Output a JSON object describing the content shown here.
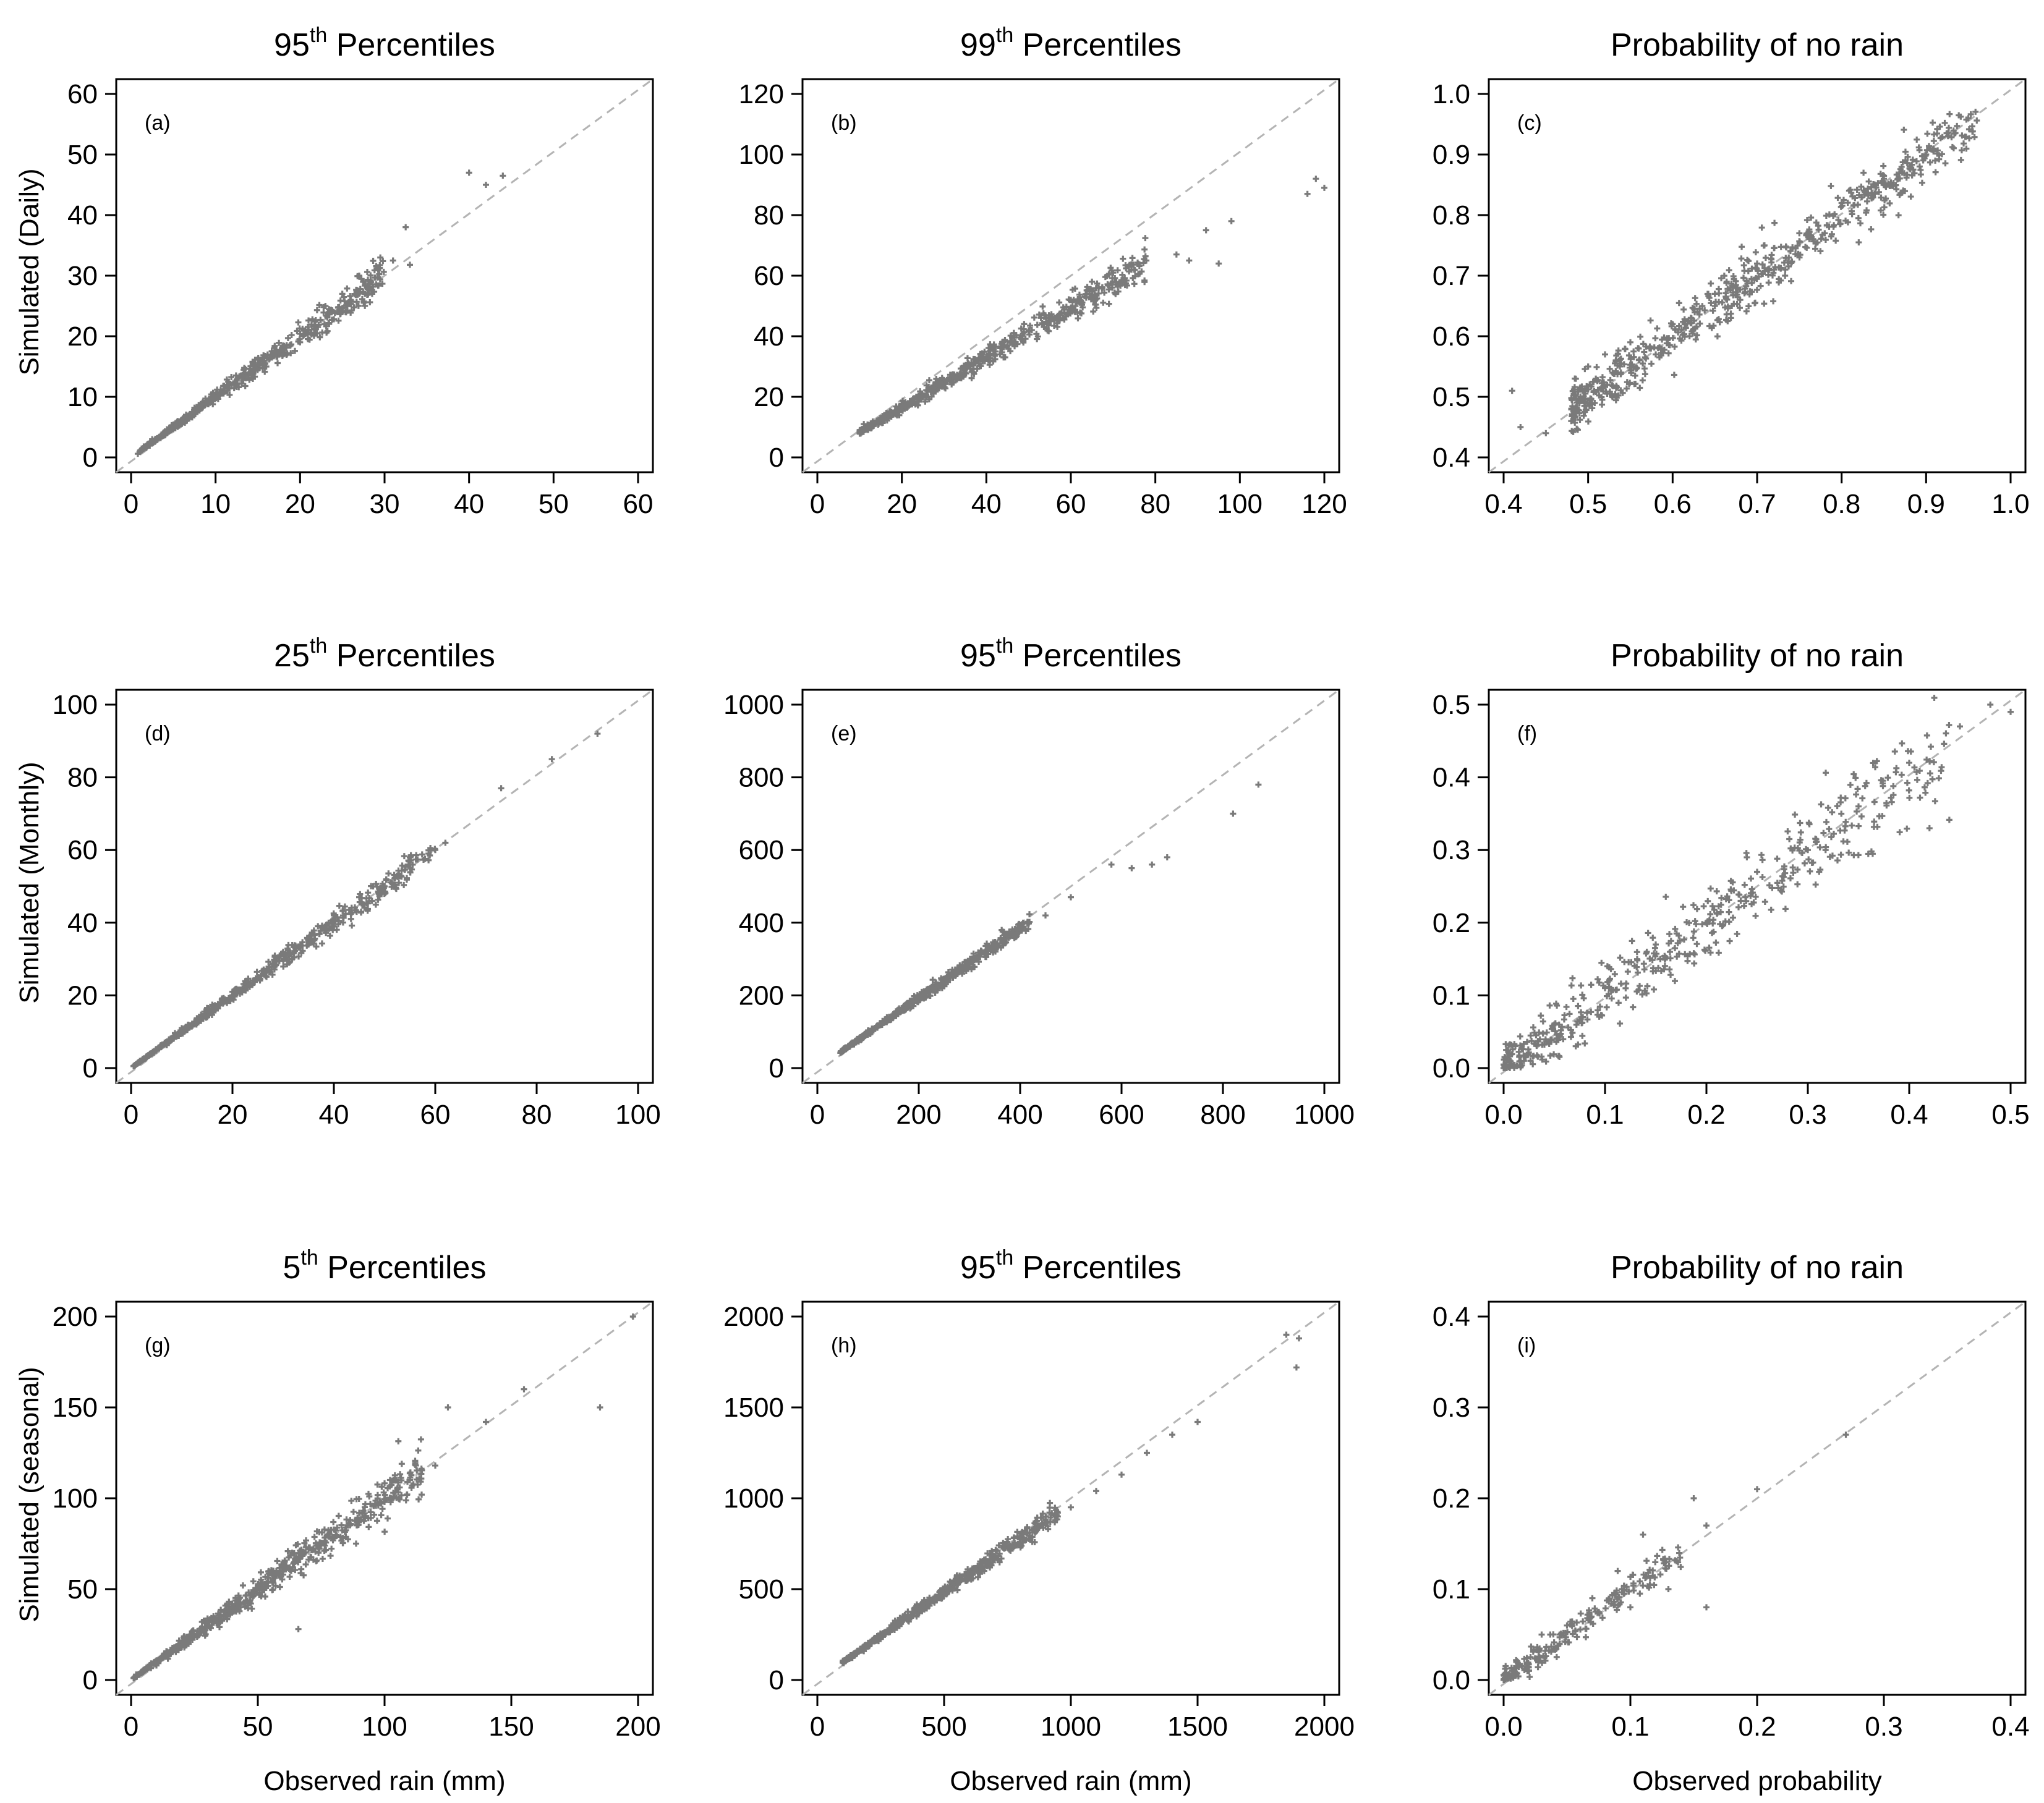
{
  "figure": {
    "x_axis_labels": [
      "Observed rain (mm)",
      "Observed rain (mm)",
      "Observed probability"
    ],
    "y_axis_labels": [
      "Simulated (Daily)",
      "Simulated (Monthly)",
      "Simulated (seasonal)"
    ],
    "colors": {
      "points": "#7a7a7a",
      "reference_line": "#b4b4b4",
      "axes": "#000000"
    }
  },
  "chart_data": [
    {
      "type": "scatter",
      "panel_label": "(a)",
      "title_prefix": "95",
      "title_sup": "th",
      "title_suffix": " Percentiles",
      "xlim": [
        0,
        60
      ],
      "ylim": [
        0,
        60
      ],
      "xticks": [
        0,
        10,
        20,
        30,
        40,
        50,
        60
      ],
      "yticks": [
        0,
        10,
        20,
        30,
        40,
        50,
        60
      ],
      "reference_line": "1:1 dashed",
      "series": [
        {
          "name": "stations",
          "points": [
            [
              0.8,
              0.6
            ],
            [
              1.5,
              1.8
            ],
            [
              2.5,
              3.0
            ],
            [
              3.5,
              3.2
            ],
            [
              4.5,
              4.8
            ],
            [
              5.5,
              6.0
            ],
            [
              6.5,
              6.0
            ],
            [
              7.5,
              8.2
            ],
            [
              8.5,
              8.8
            ],
            [
              9.5,
              10.4
            ],
            [
              10.5,
              10.2
            ],
            [
              11.5,
              12.5
            ],
            [
              12.5,
              12.8
            ],
            [
              13.5,
              14.6
            ],
            [
              14.0,
              12.8
            ],
            [
              15.0,
              16.2
            ],
            [
              16.0,
              15.0
            ],
            [
              17.0,
              18.4
            ],
            [
              18.0,
              17.0
            ],
            [
              19.0,
              20.2
            ],
            [
              20.0,
              19.0
            ],
            [
              21.0,
              22.6
            ],
            [
              22.0,
              20.5
            ],
            [
              23.0,
              25.0
            ],
            [
              24.0,
              22.8
            ],
            [
              25.0,
              27.0
            ],
            [
              26.0,
              26.0
            ],
            [
              27.0,
              30.0
            ],
            [
              28.0,
              27.8
            ],
            [
              29.5,
              33.0
            ],
            [
              31.0,
              32.5
            ],
            [
              32.5,
              38.0
            ],
            [
              33.0,
              31.8
            ],
            [
              40.0,
              47.0
            ],
            [
              42.0,
              45.0
            ],
            [
              44.0,
              46.5
            ]
          ],
          "scatter_n": 520,
          "scatter_spread": 0.09,
          "scatter_xrange": [
            1,
            30
          ]
        }
      ]
    },
    {
      "type": "scatter",
      "panel_label": "(b)",
      "title_prefix": "99",
      "title_sup": "th",
      "title_suffix": " Percentiles",
      "xlim": [
        0,
        120
      ],
      "ylim": [
        0,
        120
      ],
      "xticks": [
        0,
        20,
        40,
        60,
        80,
        100,
        120
      ],
      "yticks": [
        0,
        20,
        40,
        60,
        80,
        100,
        120
      ],
      "reference_line": "1:1 dashed",
      "series": [
        {
          "name": "stations",
          "points": [
            [
              11,
              11
            ],
            [
              15,
              13
            ],
            [
              20,
              16
            ],
            [
              25,
              20
            ],
            [
              30,
              25
            ],
            [
              35,
              29
            ],
            [
              40,
              33
            ],
            [
              45,
              37
            ],
            [
              50,
              42
            ],
            [
              55,
              45
            ],
            [
              60,
              52
            ],
            [
              65,
              58
            ],
            [
              70,
              61
            ],
            [
              75,
              62
            ],
            [
              85,
              67
            ],
            [
              88,
              65
            ],
            [
              92,
              75
            ],
            [
              95,
              64
            ],
            [
              98,
              78
            ],
            [
              116,
              87
            ],
            [
              118,
              92
            ],
            [
              120,
              89
            ]
          ],
          "scatter_n": 560,
          "scatter_spread": 0.07,
          "scatter_xrange": [
            10,
            78
          ],
          "scatter_slope": 0.82
        }
      ]
    },
    {
      "type": "scatter",
      "panel_label": "(c)",
      "title_prefix": "Probability of no rain",
      "title_sup": "",
      "title_suffix": "",
      "xlim": [
        0.4,
        1.0
      ],
      "ylim": [
        0.4,
        1.0
      ],
      "xticks": [
        0.4,
        0.5,
        0.6,
        0.7,
        0.8,
        0.9,
        1.0
      ],
      "yticks": [
        0.4,
        0.5,
        0.6,
        0.7,
        0.8,
        0.9,
        1.0
      ],
      "reference_line": "1:1 dashed",
      "series": [
        {
          "name": "stations",
          "points": [
            [
              0.41,
              0.51
            ],
            [
              0.42,
              0.45
            ],
            [
              0.45,
              0.44
            ],
            [
              0.48,
              0.46
            ],
            [
              0.5,
              0.55
            ],
            [
              0.52,
              0.57
            ],
            [
              0.55,
              0.59
            ],
            [
              0.58,
              0.57
            ],
            [
              0.6,
              0.62
            ],
            [
              0.62,
              0.6
            ],
            [
              0.65,
              0.67
            ],
            [
              0.68,
              0.66
            ],
            [
              0.7,
              0.72
            ],
            [
              0.72,
              0.71
            ],
            [
              0.75,
              0.77
            ],
            [
              0.78,
              0.77
            ],
            [
              0.8,
              0.82
            ],
            [
              0.85,
              0.86
            ],
            [
              0.9,
              0.9
            ],
            [
              0.95,
              0.96
            ]
          ],
          "scatter_n": 620,
          "scatter_spread": 0.025,
          "scatter_xrange": [
            0.48,
            0.96
          ],
          "scatter_abs": true
        }
      ]
    },
    {
      "type": "scatter",
      "panel_label": "(d)",
      "title_prefix": "25",
      "title_sup": "th",
      "title_suffix": " Percentiles",
      "xlim": [
        0,
        100
      ],
      "ylim": [
        0,
        100
      ],
      "xticks": [
        0,
        20,
        40,
        60,
        80,
        100
      ],
      "yticks": [
        0,
        20,
        40,
        60,
        80,
        100
      ],
      "reference_line": "1:1 dashed",
      "series": [
        {
          "name": "stations",
          "points": [
            [
              1,
              1
            ],
            [
              5,
              5
            ],
            [
              10,
              11
            ],
            [
              15,
              14
            ],
            [
              20,
              21
            ],
            [
              25,
              25
            ],
            [
              30,
              32
            ],
            [
              35,
              34
            ],
            [
              40,
              42
            ],
            [
              45,
              47
            ],
            [
              50,
              50
            ],
            [
              55,
              58
            ],
            [
              60,
              60
            ],
            [
              62,
              62
            ],
            [
              73,
              77
            ],
            [
              83,
              85
            ],
            [
              92,
              92
            ]
          ],
          "scatter_n": 560,
          "scatter_spread": 0.07,
          "scatter_xrange": [
            0.5,
            60
          ]
        }
      ]
    },
    {
      "type": "scatter",
      "panel_label": "(e)",
      "title_prefix": "95",
      "title_sup": "th",
      "title_suffix": " Percentiles",
      "xlim": [
        0,
        1000
      ],
      "ylim": [
        0,
        1000
      ],
      "xticks": [
        0,
        200,
        400,
        600,
        800,
        1000
      ],
      "yticks": [
        0,
        200,
        400,
        600,
        800,
        1000
      ],
      "reference_line": "1:1 dashed",
      "series": [
        {
          "name": "stations",
          "points": [
            [
              50,
              50
            ],
            [
              100,
              95
            ],
            [
              150,
              140
            ],
            [
              200,
              190
            ],
            [
              250,
              230
            ],
            [
              300,
              280
            ],
            [
              350,
              330
            ],
            [
              400,
              380
            ],
            [
              450,
              420
            ],
            [
              500,
              470
            ],
            [
              580,
              560
            ],
            [
              620,
              550
            ],
            [
              660,
              560
            ],
            [
              690,
              580
            ],
            [
              820,
              700
            ],
            [
              870,
              780
            ]
          ],
          "scatter_n": 560,
          "scatter_spread": 0.05,
          "scatter_xrange": [
            45,
            420
          ],
          "scatter_slope": 0.96
        }
      ]
    },
    {
      "type": "scatter",
      "panel_label": "(f)",
      "title_prefix": "Probability of no rain",
      "title_sup": "",
      "title_suffix": "",
      "xlim": [
        0,
        0.5
      ],
      "ylim": [
        0,
        0.5
      ],
      "xticks": [
        0.0,
        0.1,
        0.2,
        0.3,
        0.4,
        0.5
      ],
      "yticks": [
        0.0,
        0.1,
        0.2,
        0.3,
        0.4,
        0.5
      ],
      "reference_line": "1:1 dashed",
      "series": [
        {
          "name": "stations",
          "points": [
            [
              0.0,
              0.0
            ],
            [
              0.02,
              0.01
            ],
            [
              0.05,
              0.06
            ],
            [
              0.1,
              0.11
            ],
            [
              0.15,
              0.17
            ],
            [
              0.2,
              0.2
            ],
            [
              0.25,
              0.27
            ],
            [
              0.3,
              0.3
            ],
            [
              0.35,
              0.36
            ],
            [
              0.4,
              0.42
            ],
            [
              0.42,
              0.33
            ],
            [
              0.45,
              0.47
            ],
            [
              0.48,
              0.5
            ],
            [
              0.5,
              0.49
            ]
          ],
          "scatter_n": 480,
          "scatter_spread": 0.14,
          "scatter_xrange": [
            0.0,
            0.44
          ],
          "scatter_abs": true,
          "scatter_absval": 0.035
        }
      ]
    },
    {
      "type": "scatter",
      "panel_label": "(g)",
      "title_prefix": "5",
      "title_sup": "th",
      "title_suffix": " Percentiles",
      "xlim": [
        0,
        200
      ],
      "ylim": [
        0,
        200
      ],
      "xticks": [
        0,
        50,
        100,
        150,
        200
      ],
      "yticks": [
        0,
        50,
        100,
        150,
        200
      ],
      "reference_line": "1:1 dashed",
      "series": [
        {
          "name": "stations",
          "points": [
            [
              2,
              3
            ],
            [
              10,
              8
            ],
            [
              20,
              18
            ],
            [
              30,
              30
            ],
            [
              40,
              38
            ],
            [
              50,
              52
            ],
            [
              60,
              58
            ],
            [
              66,
              28
            ],
            [
              70,
              72
            ],
            [
              80,
              78
            ],
            [
              90,
              92
            ],
            [
              100,
              98
            ],
            [
              110,
              110
            ],
            [
              120,
              118
            ],
            [
              125,
              150
            ],
            [
              140,
              142
            ],
            [
              155,
              160
            ],
            [
              185,
              150
            ],
            [
              198,
              200
            ]
          ],
          "scatter_n": 640,
          "scatter_spread": 0.12,
          "scatter_xrange": [
            1,
            115
          ]
        }
      ]
    },
    {
      "type": "scatter",
      "panel_label": "(h)",
      "title_prefix": "95",
      "title_sup": "th",
      "title_suffix": " Percentiles",
      "xlim": [
        0,
        2000
      ],
      "ylim": [
        0,
        2000
      ],
      "xticks": [
        0,
        500,
        1000,
        1500,
        2000
      ],
      "yticks": [
        0,
        500,
        1000,
        1500,
        2000
      ],
      "reference_line": "1:1 dashed",
      "series": [
        {
          "name": "stations",
          "points": [
            [
              100,
              100
            ],
            [
              200,
              190
            ],
            [
              300,
              290
            ],
            [
              400,
              380
            ],
            [
              500,
              480
            ],
            [
              600,
              570
            ],
            [
              700,
              680
            ],
            [
              800,
              790
            ],
            [
              900,
              880
            ],
            [
              1000,
              950
            ],
            [
              1100,
              1040
            ],
            [
              1200,
              1130
            ],
            [
              1300,
              1250
            ],
            [
              1400,
              1350
            ],
            [
              1500,
              1420
            ],
            [
              1850,
              1900
            ],
            [
              1890,
              1720
            ],
            [
              1900,
              1880
            ]
          ],
          "scatter_n": 560,
          "scatter_spread": 0.06,
          "scatter_xrange": [
            100,
            950
          ],
          "scatter_slope": 0.97
        }
      ]
    },
    {
      "type": "scatter",
      "panel_label": "(i)",
      "title_prefix": "Probability of no rain",
      "title_sup": "",
      "title_suffix": "",
      "xlim": [
        0,
        0.4
      ],
      "ylim": [
        0,
        0.4
      ],
      "xticks": [
        0.0,
        0.1,
        0.2,
        0.3,
        0.4
      ],
      "yticks": [
        0.0,
        0.1,
        0.2,
        0.3,
        0.4
      ],
      "reference_line": "1:1 dashed",
      "series": [
        {
          "name": "stations",
          "points": [
            [
              0.0,
              0.0
            ],
            [
              0.01,
              0.02
            ],
            [
              0.02,
              0.01
            ],
            [
              0.03,
              0.05
            ],
            [
              0.05,
              0.06
            ],
            [
              0.07,
              0.09
            ],
            [
              0.09,
              0.12
            ],
            [
              0.1,
              0.08
            ],
            [
              0.11,
              0.16
            ],
            [
              0.13,
              0.1
            ],
            [
              0.15,
              0.2
            ],
            [
              0.16,
              0.08
            ],
            [
              0.16,
              0.17
            ],
            [
              0.2,
              0.21
            ],
            [
              0.27,
              0.27
            ]
          ],
          "scatter_n": 220,
          "scatter_spread": 0.25,
          "scatter_xrange": [
            0.0,
            0.14
          ],
          "scatter_abs": true,
          "scatter_absval": 0.012
        }
      ]
    }
  ]
}
